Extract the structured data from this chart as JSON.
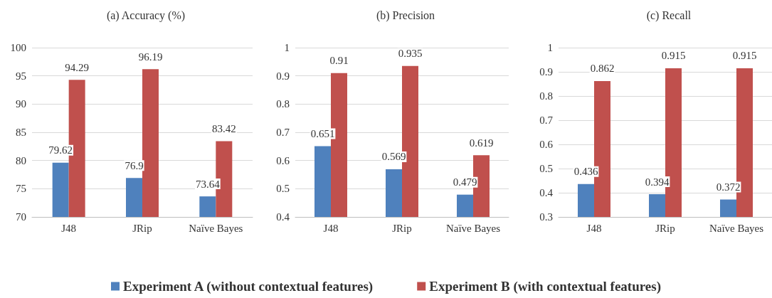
{
  "chart_data": [
    {
      "type": "bar",
      "title": "(a) Accuracy (%)",
      "categories": [
        "J48",
        "JRip",
        "Naïve Bayes"
      ],
      "series": [
        {
          "name": "Experiment A (without contextual features)",
          "color": "#4f81bd",
          "values": [
            79.62,
            76.9,
            73.64
          ]
        },
        {
          "name": "Experiment B (with contextual features)",
          "color": "#c0504d",
          "values": [
            94.29,
            96.19,
            83.42
          ]
        }
      ],
      "ylim": [
        70,
        100
      ],
      "yticks": [
        70,
        75,
        80,
        85,
        90,
        95,
        100
      ],
      "grid": "y",
      "data_labels": true,
      "legend": "bottom"
    },
    {
      "type": "bar",
      "title": "(b) Precision",
      "categories": [
        "J48",
        "JRip",
        "Naïve Bayes"
      ],
      "series": [
        {
          "color": "#4f81bd",
          "values": [
            0.651,
            0.569,
            0.479
          ]
        },
        {
          "color": "#c0504d",
          "values": [
            0.91,
            0.935,
            0.619
          ]
        }
      ],
      "ylim": [
        0.4,
        1
      ],
      "yticks": [
        0.4,
        0.5,
        0.6,
        0.7,
        0.8,
        0.9,
        1
      ],
      "grid": "y",
      "data_labels": true
    },
    {
      "type": "bar",
      "title": "(c) Recall",
      "categories": [
        "J48",
        "JRip",
        "Naïve Bayes"
      ],
      "series": [
        {
          "color": "#4f81bd",
          "values": [
            0.436,
            0.394,
            0.372
          ]
        },
        {
          "color": "#c0504d",
          "values": [
            0.862,
            0.915,
            0.915
          ]
        }
      ],
      "ylim": [
        0.3,
        1
      ],
      "yticks": [
        0.3,
        0.4,
        0.5,
        0.6,
        0.7,
        0.8,
        0.9,
        1
      ],
      "grid": "y",
      "data_labels": true
    }
  ]
}
